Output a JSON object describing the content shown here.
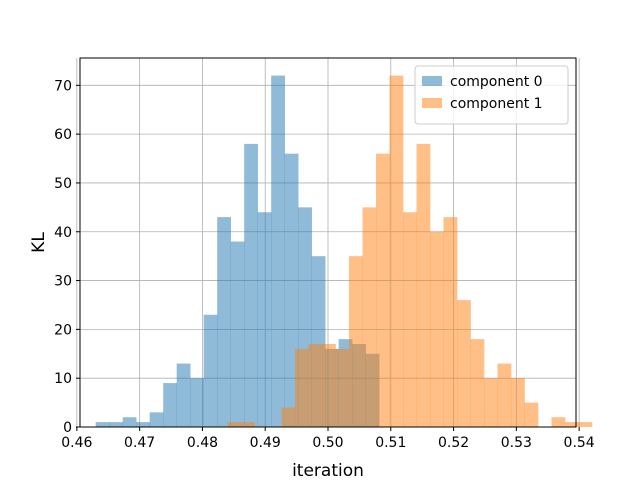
{
  "chart_data": {
    "type": "bar",
    "title": "",
    "xlabel": "iteration",
    "ylabel": "KL",
    "xlim": [
      0.4605,
      0.5395
    ],
    "ylim": [
      0,
      75.6
    ],
    "x_ticks": [
      0.46,
      0.47,
      0.48,
      0.49,
      0.5,
      0.51,
      0.52,
      0.53,
      0.54
    ],
    "x_tick_labels": [
      "0.46",
      "0.47",
      "0.48",
      "0.49",
      "0.50",
      "0.51",
      "0.52",
      "0.53",
      "0.54"
    ],
    "y_ticks": [
      0,
      10,
      20,
      30,
      40,
      50,
      60,
      70
    ],
    "y_tick_labels": [
      "0",
      "10",
      "20",
      "30",
      "40",
      "50",
      "60",
      "70"
    ],
    "grid": true,
    "legend_position": "top-right",
    "bar_alpha": 0.5,
    "series": [
      {
        "name": "component 0",
        "color": "#1f77b4",
        "bin_start": 0.463,
        "bin_width": 0.00215,
        "values": [
          1,
          1,
          2,
          1,
          3,
          9,
          13,
          10,
          23,
          43,
          38,
          58,
          44,
          72,
          56,
          45,
          35,
          16,
          18,
          17,
          15
        ]
      },
      {
        "name": "component 1",
        "color": "#ff7f0e",
        "bin_start": 0.484,
        "bin_width": 0.00215,
        "values": [
          1,
          1,
          0,
          0,
          4,
          16,
          17,
          17,
          16,
          35,
          45,
          56,
          72,
          44,
          58,
          40,
          43,
          26,
          18,
          10,
          13,
          10,
          5,
          0,
          2,
          1,
          1
        ]
      }
    ]
  }
}
